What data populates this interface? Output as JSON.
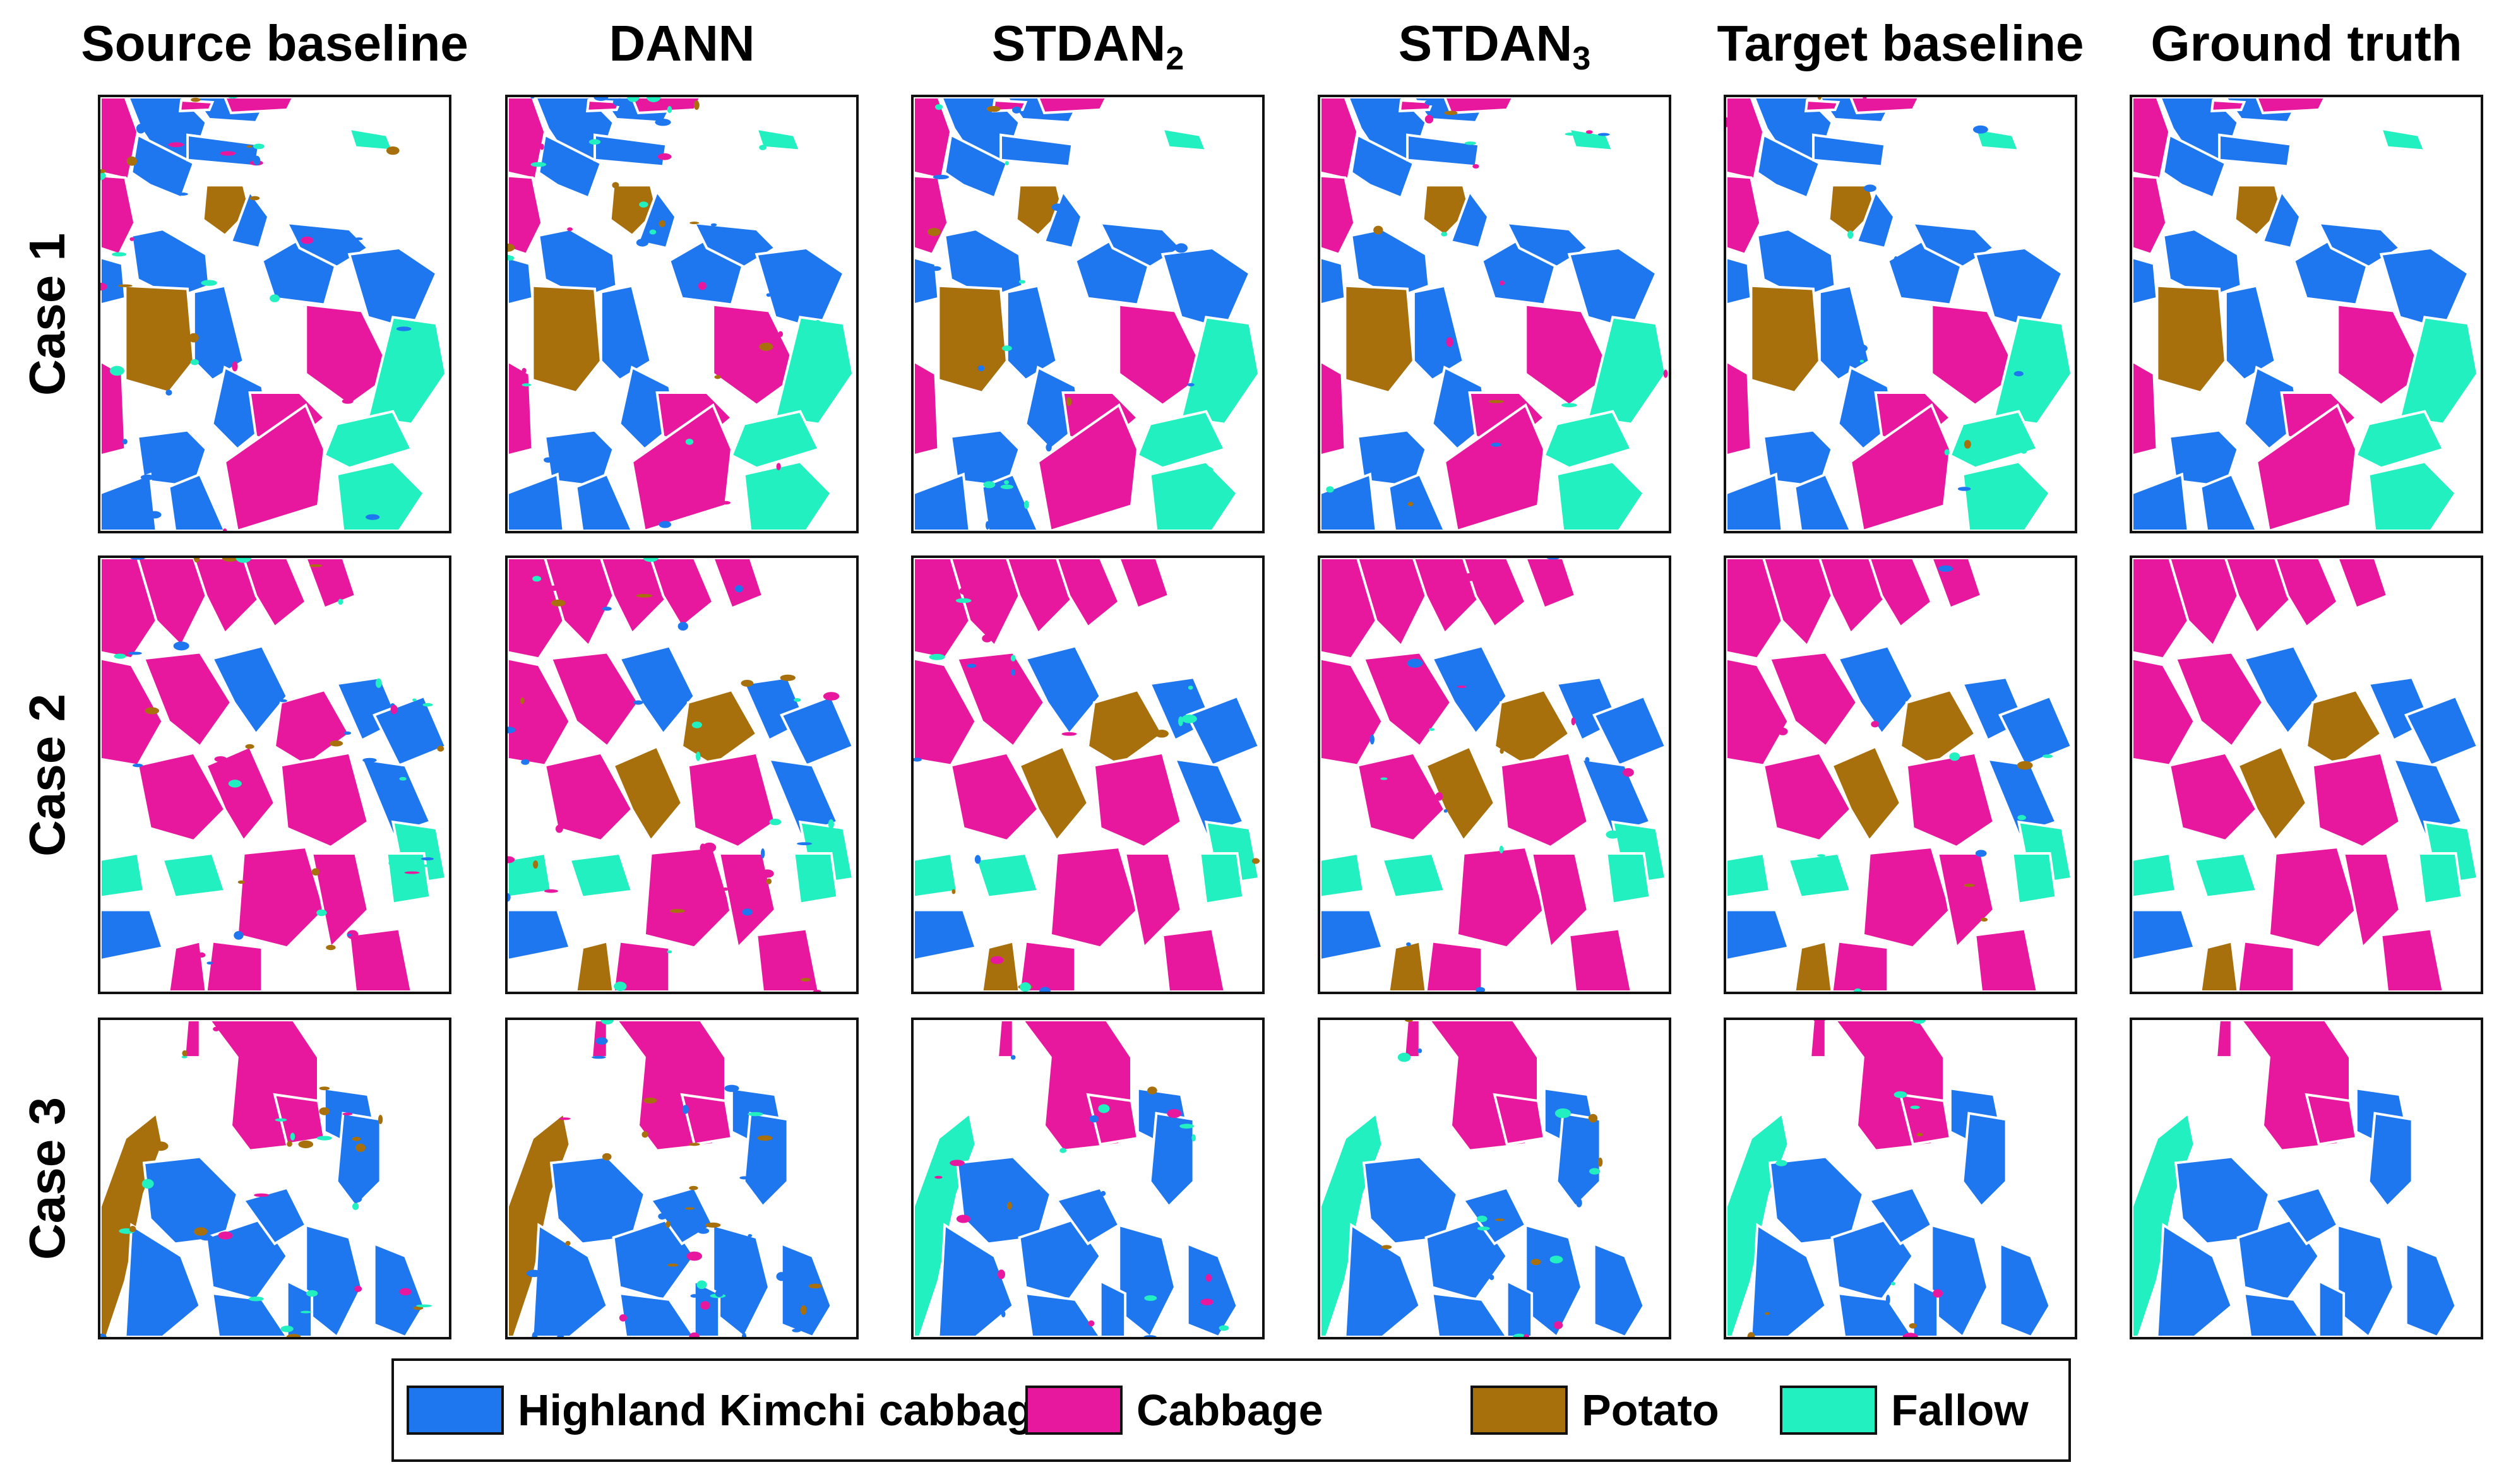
{
  "columns": [
    {
      "label": "Source baseline",
      "sub": ""
    },
    {
      "label": "DANN",
      "sub": ""
    },
    {
      "label": "STDAN",
      "sub": "2"
    },
    {
      "label": "STDAN",
      "sub": "3"
    },
    {
      "label": "Target baseline",
      "sub": ""
    },
    {
      "label": "Ground truth",
      "sub": ""
    }
  ],
  "rows": [
    "Case 1",
    "Case 2",
    "Case 3"
  ],
  "legend": [
    {
      "label": "Highland Kimchi cabbage",
      "color": "#1f77f0"
    },
    {
      "label": "Cabbage",
      "color": "#e8189e"
    },
    {
      "label": "Potato",
      "color": "#a8700c"
    },
    {
      "label": "Fallow",
      "color": "#22f0c0"
    }
  ]
}
